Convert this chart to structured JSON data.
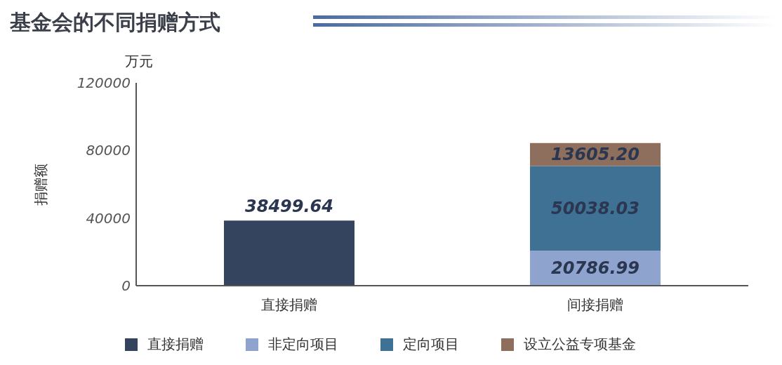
{
  "chart_data": {
    "type": "bar",
    "title": "基金会的不同捐赠方式",
    "ylabel": "捐赠额",
    "annotations": [
      "万元"
    ],
    "categories": [
      "直接捐赠",
      "间接捐赠"
    ],
    "stacked": true,
    "series": [
      {
        "name": "直接捐赠",
        "color": "#34445f",
        "values": [
          38499.64,
          null
        ],
        "value_labels": [
          "38499.64",
          null
        ]
      },
      {
        "name": "非定向项目",
        "color": "#8fa3cf",
        "values": [
          null,
          20786.99
        ],
        "value_labels": [
          null,
          "20786.99"
        ]
      },
      {
        "name": "定向项目",
        "color": "#3f7195",
        "values": [
          null,
          50038.03
        ],
        "value_labels": [
          null,
          "50038.03"
        ]
      },
      {
        "name": "设立公益专项基金",
        "color": "#8e6f5e",
        "values": [
          null,
          13605.2
        ],
        "value_labels": [
          null,
          "13605.20"
        ]
      }
    ],
    "ylim": [
      0,
      120000
    ],
    "yticks": [
      0,
      40000,
      80000,
      120000
    ],
    "grid": false,
    "legend": "bottom"
  }
}
